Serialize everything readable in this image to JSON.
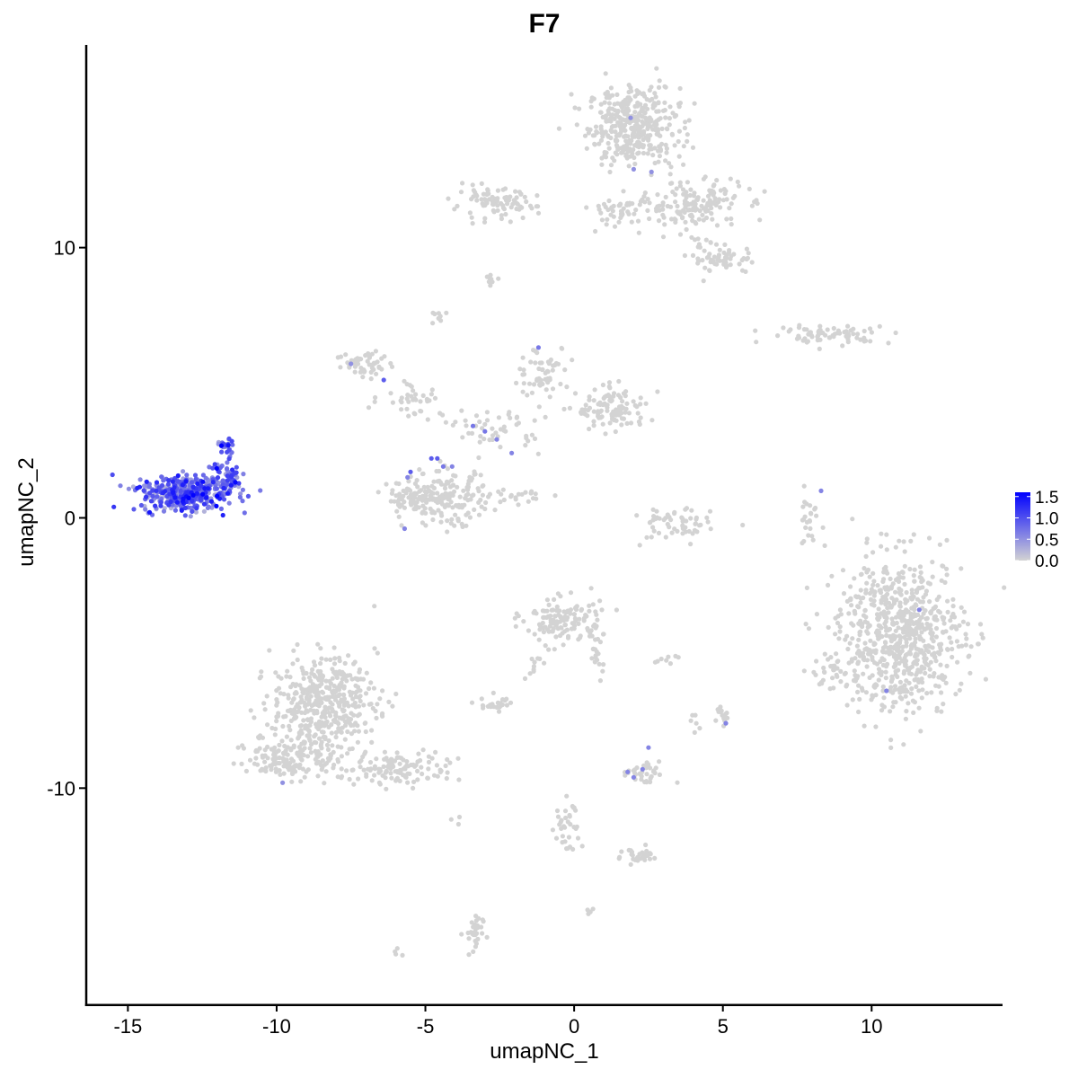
{
  "chart_data": {
    "type": "scatter",
    "title": "F7",
    "xlabel": "umapNC_1",
    "ylabel": "umapNC_2",
    "xlim": [
      -16.4,
      14.4
    ],
    "ylim": [
      -18.0,
      17.5
    ],
    "x_ticks": [
      -15,
      -10,
      -5,
      0,
      5,
      10
    ],
    "x_tick_labels": [
      "-15",
      "-10",
      "-5",
      "0",
      "5",
      "10"
    ],
    "y_ticks": [
      -10,
      0,
      10
    ],
    "y_tick_labels": [
      "-10",
      "0",
      "10"
    ],
    "grid": false,
    "legend": {
      "placement": "right",
      "type": "colorbar",
      "min": 0.0,
      "max": 1.6,
      "ticks": [
        0.0,
        0.5,
        1.0,
        1.5
      ],
      "tick_labels": [
        "0.0",
        "0.5",
        "1.0",
        "1.5"
      ],
      "low_color": "#D3D3D3",
      "high_color": "#0000FF"
    },
    "base_color": "#D3D3D3",
    "clusters": [
      {
        "cx": 2.0,
        "cy": 14.5,
        "rx": 1.4,
        "ry": 1.3,
        "n": 380,
        "expr": 0
      },
      {
        "cx": 4.0,
        "cy": 11.6,
        "rx": 1.5,
        "ry": 0.9,
        "n": 160,
        "expr": 0
      },
      {
        "cx": 5.0,
        "cy": 9.6,
        "rx": 1.0,
        "ry": 0.5,
        "n": 60,
        "expr": 0
      },
      {
        "cx": -2.7,
        "cy": 11.6,
        "rx": 1.3,
        "ry": 0.5,
        "n": 90,
        "expr": 0
      },
      {
        "cx": 1.6,
        "cy": 11.4,
        "rx": 1.0,
        "ry": 0.6,
        "n": 50,
        "expr": 0
      },
      {
        "cx": -2.8,
        "cy": 8.8,
        "rx": 0.25,
        "ry": 0.15,
        "n": 8,
        "expr": 0
      },
      {
        "cx": -4.5,
        "cy": 7.4,
        "rx": 0.25,
        "ry": 0.25,
        "n": 8,
        "expr": 0
      },
      {
        "cx": 8.6,
        "cy": 6.8,
        "rx": 1.9,
        "ry": 0.3,
        "n": 70,
        "expr": 0
      },
      {
        "cx": -7.0,
        "cy": 5.7,
        "rx": 0.9,
        "ry": 0.5,
        "n": 50,
        "expr": 0
      },
      {
        "cx": -5.5,
        "cy": 4.5,
        "rx": 1.0,
        "ry": 0.7,
        "n": 40,
        "expr": 0
      },
      {
        "cx": -1.0,
        "cy": 5.4,
        "rx": 0.8,
        "ry": 0.9,
        "n": 60,
        "expr": 0
      },
      {
        "cx": 1.3,
        "cy": 4.0,
        "rx": 1.1,
        "ry": 0.7,
        "n": 110,
        "expr": 0
      },
      {
        "cx": -2.6,
        "cy": 3.3,
        "rx": 1.4,
        "ry": 0.7,
        "n": 50,
        "expr": 0
      },
      {
        "cx": -4.3,
        "cy": 0.7,
        "rx": 1.3,
        "ry": 0.9,
        "n": 170,
        "expr": 0
      },
      {
        "cx": -5.6,
        "cy": 0.7,
        "rx": 0.6,
        "ry": 0.6,
        "n": 50,
        "expr": 0
      },
      {
        "cx": -1.8,
        "cy": 0.8,
        "rx": 1.0,
        "ry": 0.25,
        "n": 20,
        "expr": 0
      },
      {
        "cx": 3.3,
        "cy": -0.3,
        "rx": 1.2,
        "ry": 0.7,
        "n": 60,
        "expr": 0
      },
      {
        "cx": 7.9,
        "cy": 0.0,
        "rx": 0.4,
        "ry": 0.9,
        "n": 25,
        "expr": 0
      },
      {
        "cx": 11.0,
        "cy": -4.3,
        "rx": 1.9,
        "ry": 2.6,
        "n": 700,
        "expr": 0
      },
      {
        "cx": 8.8,
        "cy": -5.5,
        "rx": 0.7,
        "ry": 0.8,
        "n": 40,
        "expr": 0
      },
      {
        "cx": -0.4,
        "cy": -3.8,
        "rx": 1.2,
        "ry": 0.8,
        "n": 130,
        "expr": 0
      },
      {
        "cx": 0.7,
        "cy": -5.0,
        "rx": 0.4,
        "ry": 0.8,
        "n": 20,
        "expr": 0
      },
      {
        "cx": -2.6,
        "cy": -6.9,
        "rx": 0.5,
        "ry": 0.3,
        "n": 25,
        "expr": 0
      },
      {
        "cx": -1.4,
        "cy": -5.5,
        "rx": 0.3,
        "ry": 0.5,
        "n": 10,
        "expr": 0
      },
      {
        "cx": 3.0,
        "cy": -5.3,
        "rx": 0.5,
        "ry": 0.2,
        "n": 8,
        "expr": 0
      },
      {
        "cx": -8.4,
        "cy": -6.8,
        "rx": 1.6,
        "ry": 1.5,
        "n": 420,
        "expr": 0
      },
      {
        "cx": -9.5,
        "cy": -8.8,
        "rx": 1.3,
        "ry": 0.8,
        "n": 160,
        "expr": 0
      },
      {
        "cx": -6.0,
        "cy": -9.3,
        "rx": 2.0,
        "ry": 0.55,
        "n": 130,
        "expr": 0
      },
      {
        "cx": 5.0,
        "cy": -7.3,
        "rx": 0.2,
        "ry": 0.4,
        "n": 15,
        "expr": 0
      },
      {
        "cx": 4.1,
        "cy": -7.6,
        "rx": 0.2,
        "ry": 0.3,
        "n": 6,
        "expr": 0
      },
      {
        "cx": 2.3,
        "cy": -9.5,
        "rx": 0.7,
        "ry": 0.4,
        "n": 35,
        "expr": 0
      },
      {
        "cx": 2.2,
        "cy": -12.5,
        "rx": 0.6,
        "ry": 0.3,
        "n": 30,
        "expr": 0
      },
      {
        "cx": -0.2,
        "cy": -11.5,
        "rx": 0.4,
        "ry": 1.1,
        "n": 35,
        "expr": 0
      },
      {
        "cx": -3.4,
        "cy": -15.4,
        "rx": 0.3,
        "ry": 0.8,
        "n": 30,
        "expr": 0
      },
      {
        "cx": -6.0,
        "cy": -16.1,
        "rx": 0.15,
        "ry": 0.15,
        "n": 4,
        "expr": 0
      },
      {
        "cx": 0.6,
        "cy": -14.5,
        "rx": 0.15,
        "ry": 0.15,
        "n": 4,
        "expr": 0
      },
      {
        "cx": -4.0,
        "cy": -11.3,
        "rx": 0.2,
        "ry": 0.2,
        "n": 3,
        "expr": 0
      },
      {
        "cx": -13.1,
        "cy": 0.9,
        "rx": 1.3,
        "ry": 0.6,
        "n": 420,
        "expr": 1
      },
      {
        "cx": -11.7,
        "cy": 1.5,
        "rx": 0.6,
        "ry": 0.5,
        "n": 70,
        "expr": 1
      },
      {
        "cx": -11.7,
        "cy": 2.6,
        "rx": 0.25,
        "ry": 0.35,
        "n": 25,
        "expr": 1
      }
    ],
    "expressed_points": [
      {
        "x": 1.9,
        "y": 14.8,
        "v": 0.5
      },
      {
        "x": 2.0,
        "y": 12.9,
        "v": 0.5
      },
      {
        "x": 2.6,
        "y": 12.8,
        "v": 0.5
      },
      {
        "x": -7.5,
        "y": 5.7,
        "v": 0.5
      },
      {
        "x": -6.4,
        "y": 5.1,
        "v": 0.9
      },
      {
        "x": -1.2,
        "y": 6.3,
        "v": 0.7
      },
      {
        "x": -3.4,
        "y": 3.4,
        "v": 0.7
      },
      {
        "x": -3.0,
        "y": 3.2,
        "v": 0.7
      },
      {
        "x": -2.6,
        "y": 2.9,
        "v": 0.6
      },
      {
        "x": -2.1,
        "y": 2.4,
        "v": 0.6
      },
      {
        "x": -4.6,
        "y": 2.2,
        "v": 0.9
      },
      {
        "x": -4.8,
        "y": 2.2,
        "v": 0.9
      },
      {
        "x": -4.4,
        "y": 1.9,
        "v": 0.7
      },
      {
        "x": -4.1,
        "y": 1.9,
        "v": 0.6
      },
      {
        "x": -5.5,
        "y": 1.7,
        "v": 0.9
      },
      {
        "x": -5.6,
        "y": 1.5,
        "v": 0.6
      },
      {
        "x": -5.7,
        "y": -0.4,
        "v": 0.6
      },
      {
        "x": 8.3,
        "y": 1.0,
        "v": 0.6
      },
      {
        "x": 11.6,
        "y": -3.4,
        "v": 0.6
      },
      {
        "x": 10.5,
        "y": -6.4,
        "v": 0.6
      },
      {
        "x": 5.1,
        "y": -7.6,
        "v": 0.6
      },
      {
        "x": 2.5,
        "y": -8.5,
        "v": 0.6
      },
      {
        "x": 2.3,
        "y": -9.3,
        "v": 0.6
      },
      {
        "x": 1.8,
        "y": -9.4,
        "v": 0.6
      },
      {
        "x": 2.0,
        "y": -9.6,
        "v": 0.6
      },
      {
        "x": -9.8,
        "y": -9.8,
        "v": 0.5
      }
    ]
  }
}
